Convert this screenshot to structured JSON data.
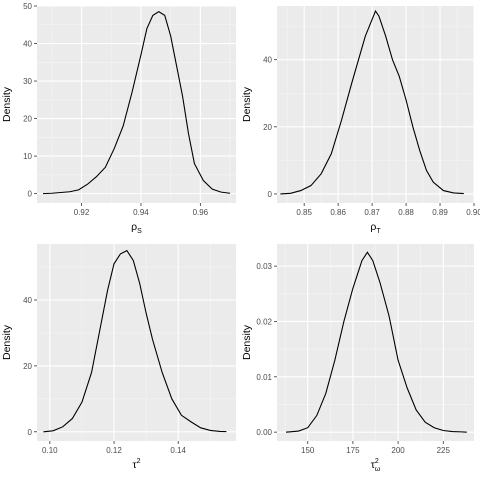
{
  "chart_data": [
    {
      "type": "line",
      "xlabel": "ρ",
      "xlabel_sub": "S",
      "xlabel_sup": "",
      "ylabel": "Density",
      "xlim": [
        0.905,
        0.972
      ],
      "ylim": [
        -2.5,
        50
      ],
      "xticks": [
        0.92,
        0.94,
        0.96
      ],
      "xtick_labels": [
        "0.92",
        "0.94",
        "0.96"
      ],
      "xminor": [
        0.91,
        0.93,
        0.95,
        0.97
      ],
      "yticks": [
        0,
        10,
        20,
        30,
        40,
        50
      ],
      "ytick_labels": [
        "0",
        "10",
        "20",
        "30",
        "40",
        "50"
      ],
      "grid": true,
      "x": [
        0.907,
        0.91,
        0.913,
        0.916,
        0.919,
        0.922,
        0.925,
        0.928,
        0.931,
        0.934,
        0.937,
        0.94,
        0.942,
        0.944,
        0.946,
        0.948,
        0.95,
        0.952,
        0.954,
        0.956,
        0.958,
        0.961,
        0.964,
        0.967,
        0.97
      ],
      "y": [
        0,
        0.1,
        0.3,
        0.5,
        1,
        2.5,
        4.5,
        7,
        12,
        18,
        27,
        37,
        44,
        47.5,
        48.5,
        47.5,
        42,
        34,
        26,
        16,
        8,
        3.5,
        1.2,
        0.4,
        0.1
      ]
    },
    {
      "type": "line",
      "xlabel": "ρ",
      "xlabel_sub": "T",
      "xlabel_sup": "",
      "ylabel": "Density",
      "xlim": [
        0.842,
        0.9
      ],
      "ylim": [
        -2.7,
        56
      ],
      "xticks": [
        0.85,
        0.86,
        0.87,
        0.88,
        0.89,
        0.9
      ],
      "xtick_labels": [
        "0.85",
        "0.86",
        "0.87",
        "0.88",
        "0.89",
        "0.90"
      ],
      "xminor": [
        0.845,
        0.855,
        0.865,
        0.875,
        0.885,
        0.895
      ],
      "yticks": [
        0,
        20,
        40
      ],
      "ytick_labels": [
        "0",
        "20",
        "40"
      ],
      "grid": true,
      "x": [
        0.843,
        0.846,
        0.849,
        0.852,
        0.855,
        0.858,
        0.861,
        0.864,
        0.866,
        0.868,
        0.87,
        0.871,
        0.872,
        0.874,
        0.876,
        0.878,
        0.88,
        0.882,
        0.884,
        0.886,
        0.888,
        0.891,
        0.894,
        0.897
      ],
      "y": [
        0,
        0.2,
        1,
        2.5,
        6,
        12,
        22,
        33,
        40,
        47,
        52,
        54.5,
        53,
        47,
        40,
        35,
        28,
        20,
        13,
        7,
        3.5,
        1,
        0.3,
        0.1
      ]
    },
    {
      "type": "line",
      "xlabel": "τ",
      "xlabel_sub": "",
      "xlabel_sup": "2",
      "ylabel": "Density",
      "xlim": [
        0.096,
        0.158
      ],
      "ylim": [
        -2.8,
        57
      ],
      "xticks": [
        0.1,
        0.12,
        0.14
      ],
      "xtick_labels": [
        "0.10",
        "0.12",
        "0.14"
      ],
      "xminor": [
        0.11,
        0.13,
        0.15
      ],
      "yticks": [
        0,
        20,
        40
      ],
      "ytick_labels": [
        "0",
        "20",
        "40"
      ],
      "grid": true,
      "x": [
        0.098,
        0.101,
        0.104,
        0.107,
        0.11,
        0.113,
        0.116,
        0.118,
        0.12,
        0.122,
        0.124,
        0.126,
        0.128,
        0.13,
        0.132,
        0.135,
        0.138,
        0.141,
        0.144,
        0.147,
        0.15,
        0.153,
        0.155
      ],
      "y": [
        0,
        0.3,
        1.5,
        4,
        9,
        18,
        33,
        43,
        51,
        54,
        55,
        52,
        45,
        36,
        28,
        18,
        10,
        5,
        3,
        1.2,
        0.4,
        0.1,
        0.05
      ]
    },
    {
      "type": "line",
      "xlabel": "τ",
      "xlabel_sub": "ω",
      "xlabel_sup": "2",
      "ylabel": "Density",
      "xlim": [
        133,
        242
      ],
      "ylim": [
        -0.0016,
        0.034
      ],
      "xticks": [
        150,
        175,
        200,
        225
      ],
      "xtick_labels": [
        "150",
        "175",
        "200",
        "225"
      ],
      "xminor": [
        137.5,
        162.5,
        187.5,
        212.5,
        237.5
      ],
      "yticks": [
        0,
        0.01,
        0.02,
        0.03
      ],
      "ytick_labels": [
        "0.00",
        "0.01",
        "0.02",
        "0.03"
      ],
      "grid": true,
      "x": [
        138,
        145,
        150,
        155,
        160,
        165,
        170,
        175,
        180,
        183,
        186,
        190,
        195,
        200,
        205,
        210,
        215,
        220,
        225,
        230,
        235,
        238
      ],
      "y": [
        0,
        0.0002,
        0.0008,
        0.003,
        0.007,
        0.013,
        0.02,
        0.026,
        0.031,
        0.0325,
        0.031,
        0.027,
        0.021,
        0.013,
        0.008,
        0.004,
        0.0018,
        0.0008,
        0.0003,
        0.0001,
        5e-05,
        0
      ]
    }
  ]
}
